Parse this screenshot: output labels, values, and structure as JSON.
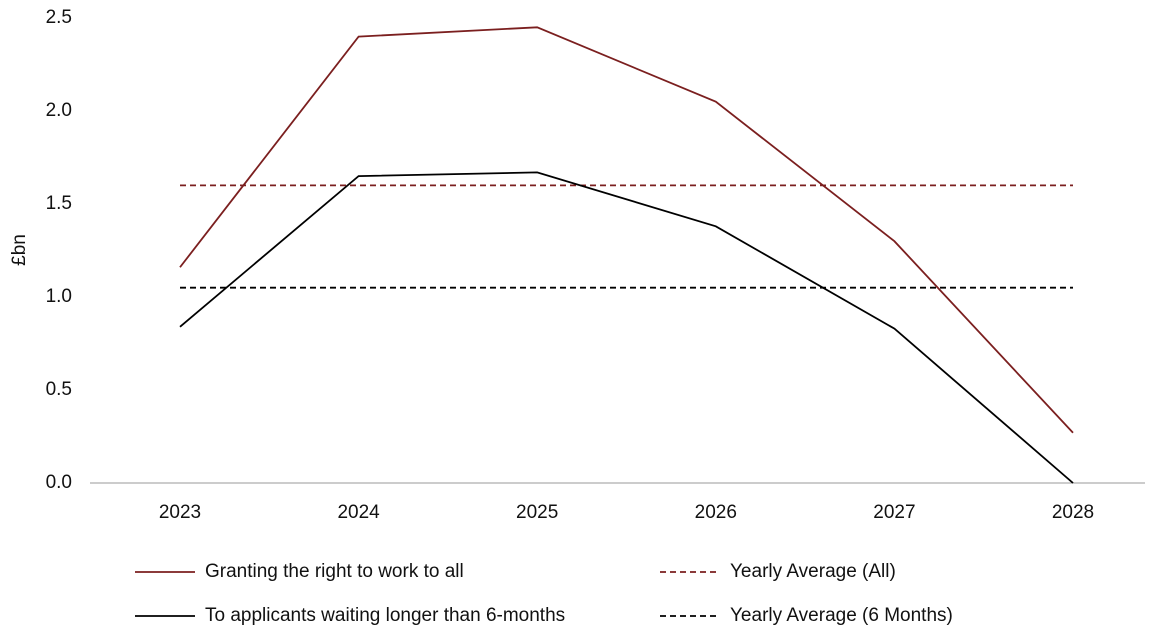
{
  "chart_data": {
    "type": "line",
    "y_label": "£bn",
    "categories": [
      "2023",
      "2024",
      "2025",
      "2026",
      "2027",
      "2028"
    ],
    "series": [
      {
        "name": "Granting the right to work to all",
        "color": "#7b1f1f",
        "dashed": false,
        "values": [
          1.16,
          2.4,
          2.45,
          2.05,
          1.3,
          0.27
        ]
      },
      {
        "name": "Yearly Average (All)",
        "color": "#7b1f1f",
        "dashed": true,
        "values": [
          1.6,
          1.6,
          1.6,
          1.6,
          1.6,
          1.6
        ]
      },
      {
        "name": "To applicants waiting longer than 6-months",
        "color": "#000000",
        "dashed": false,
        "values": [
          0.84,
          1.65,
          1.67,
          1.38,
          0.83,
          0.0
        ]
      },
      {
        "name": "Yearly Average (6 Months)",
        "color": "#000000",
        "dashed": true,
        "values": [
          1.05,
          1.05,
          1.05,
          1.05,
          1.05,
          1.05
        ]
      }
    ],
    "ylim": [
      0,
      2.5
    ],
    "yticks": [
      {
        "value": 0,
        "label": "0.0"
      },
      0.5,
      {
        "value": 1,
        "label": "1.0"
      },
      1.5,
      {
        "value": 2,
        "label": "2.0"
      },
      2.5
    ],
    "grid": false
  }
}
